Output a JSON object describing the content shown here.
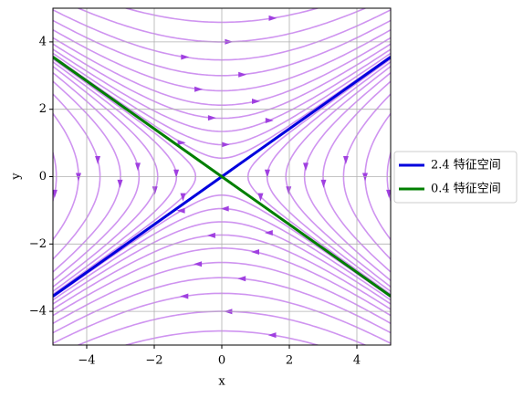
{
  "chart_data": {
    "type": "line",
    "xlabel": "x",
    "ylabel": "y",
    "xlim": [
      -5,
      5
    ],
    "ylim": [
      -5,
      5
    ],
    "xticks": [
      {
        "value": -4,
        "label": "−4"
      },
      {
        "value": -2,
        "label": "−2"
      },
      0,
      2,
      4
    ],
    "yticks": [
      {
        "value": -4,
        "label": "−4"
      },
      {
        "value": -2,
        "label": "−2"
      },
      0,
      2,
      4
    ],
    "grid": true,
    "legend": "outside right",
    "series": [
      {
        "name": "2.4 特征空间",
        "color": "#0000dd",
        "x": [
          -5,
          5
        ],
        "values": [
          -3.55,
          3.55
        ]
      },
      {
        "name": "0.4 特征空间",
        "color": "#007f00",
        "x": [
          -5,
          5
        ],
        "values": [
          3.55,
          -3.55
        ]
      }
    ]
  }
}
